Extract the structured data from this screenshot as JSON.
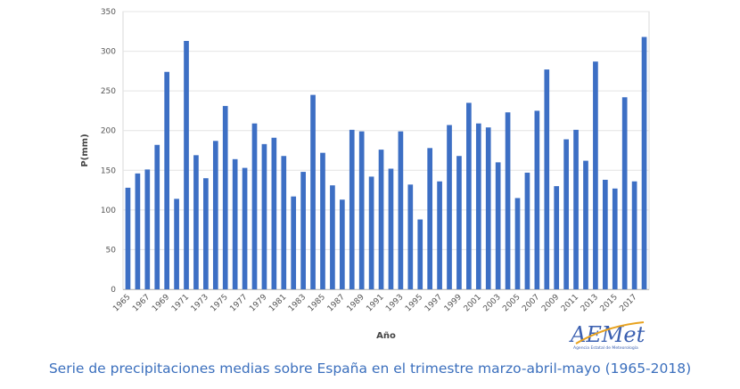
{
  "chart_data": {
    "type": "bar",
    "title": "",
    "xlabel": "Año",
    "ylabel": "P(mm)",
    "ylim": [
      0,
      350
    ],
    "yticks": [
      0,
      50,
      100,
      150,
      200,
      250,
      300,
      350
    ],
    "grid": true,
    "bar_color": "#3d6fc4",
    "categories": [
      "1965",
      "1966",
      "1967",
      "1968",
      "1969",
      "1970",
      "1971",
      "1972",
      "1973",
      "1974",
      "1975",
      "1976",
      "1977",
      "1978",
      "1979",
      "1980",
      "1981",
      "1982",
      "1983",
      "1984",
      "1985",
      "1986",
      "1987",
      "1988",
      "1989",
      "1990",
      "1991",
      "1992",
      "1993",
      "1994",
      "1995",
      "1996",
      "1997",
      "1998",
      "1999",
      "2000",
      "2001",
      "2002",
      "2003",
      "2004",
      "2005",
      "2006",
      "2007",
      "2008",
      "2009",
      "2010",
      "2011",
      "2012",
      "2013",
      "2014",
      "2015",
      "2016",
      "2017",
      "2018"
    ],
    "x_tick_labels": [
      "1965",
      "1967",
      "1969",
      "1971",
      "1973",
      "1975",
      "1977",
      "1979",
      "1981",
      "1983",
      "1985",
      "1987",
      "1989",
      "1991",
      "1993",
      "1995",
      "1997",
      "1999",
      "2001",
      "2003",
      "2005",
      "2007",
      "2009",
      "2011",
      "2013",
      "2015",
      "2017"
    ],
    "values": [
      128,
      146,
      151,
      182,
      274,
      114,
      313,
      169,
      140,
      187,
      231,
      164,
      153,
      209,
      183,
      191,
      168,
      117,
      148,
      245,
      172,
      131,
      113,
      201,
      199,
      142,
      176,
      152,
      199,
      132,
      88,
      178,
      136,
      207,
      168,
      235,
      209,
      204,
      160,
      223,
      115,
      147,
      225,
      277,
      130,
      189,
      201,
      162,
      287,
      138,
      127,
      242,
      136,
      318
    ]
  },
  "logo": {
    "text": "AEMet",
    "subtitle": "Agencia Estatal de Meteorología"
  },
  "caption": "Serie de precipitaciones medias sobre España en el trimestre marzo-abril-mayo (1965-2018)"
}
